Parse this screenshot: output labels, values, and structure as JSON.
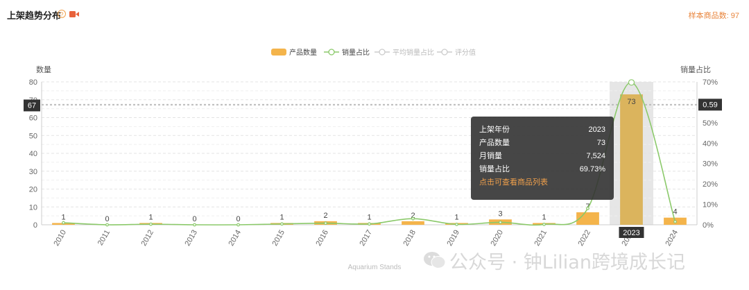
{
  "header": {
    "title": "上架趋势分布",
    "help_icon": "?",
    "video_icon": "video-camera-icon",
    "sample_label": "样本商品数: ",
    "sample_count": "97"
  },
  "chart_data": {
    "type": "bar",
    "legend": [
      "产品数量",
      "销量占比",
      "平均销量占比",
      "评分值"
    ],
    "legend_colors": [
      "#f4b44b",
      "#8bc96a",
      "#cccccc",
      "#cccccc"
    ],
    "legend_placement": "top-center",
    "categories": [
      "2010",
      "2011",
      "2012",
      "2013",
      "2014",
      "2015",
      "2016",
      "2017",
      "2018",
      "2019",
      "2020",
      "2021",
      "2022",
      "2023",
      "2024"
    ],
    "series": [
      {
        "name": "产品数量",
        "type": "bar",
        "axis": "left",
        "color": "#f4b44b",
        "values": [
          1,
          0,
          1,
          0,
          0,
          1,
          2,
          1,
          2,
          1,
          3,
          1,
          7,
          73,
          4
        ]
      },
      {
        "name": "销量占比",
        "type": "line",
        "axis": "right",
        "color": "#8bc96a",
        "values": [
          0.01,
          0.0,
          0.003,
          0.0,
          0.0,
          0.004,
          0.008,
          0.004,
          0.03,
          0.002,
          0.012,
          0.002,
          0.08,
          0.6973,
          0.015
        ]
      }
    ],
    "ylabel_left": "数量",
    "ylabel_right": "销量占比",
    "ylim_left": [
      0,
      80
    ],
    "yticks_left": [
      0,
      10,
      20,
      30,
      40,
      50,
      60,
      70,
      80
    ],
    "ylim_right": [
      0,
      0.7
    ],
    "yticks_right": [
      "0%",
      "10%",
      "20%",
      "30%",
      "40%",
      "50%",
      "60%",
      "70%"
    ],
    "ref_left_label": "67",
    "ref_left_value": 67,
    "ref_right_label": "0.59",
    "ref_right_value": 0.59,
    "highlight_category": "2023",
    "xlabel": "Aquarium Stands",
    "grid": true
  },
  "tooltip": {
    "rows": [
      {
        "label": "上架年份",
        "value": "2023"
      },
      {
        "label": "产品数量",
        "value": "73"
      },
      {
        "label": "月销量",
        "value": "7,524"
      },
      {
        "label": "销量占比",
        "value": "69.73%"
      }
    ],
    "link": "点击可查看商品列表"
  },
  "watermark": "公众号 · 钟Lilian跨境成长记"
}
